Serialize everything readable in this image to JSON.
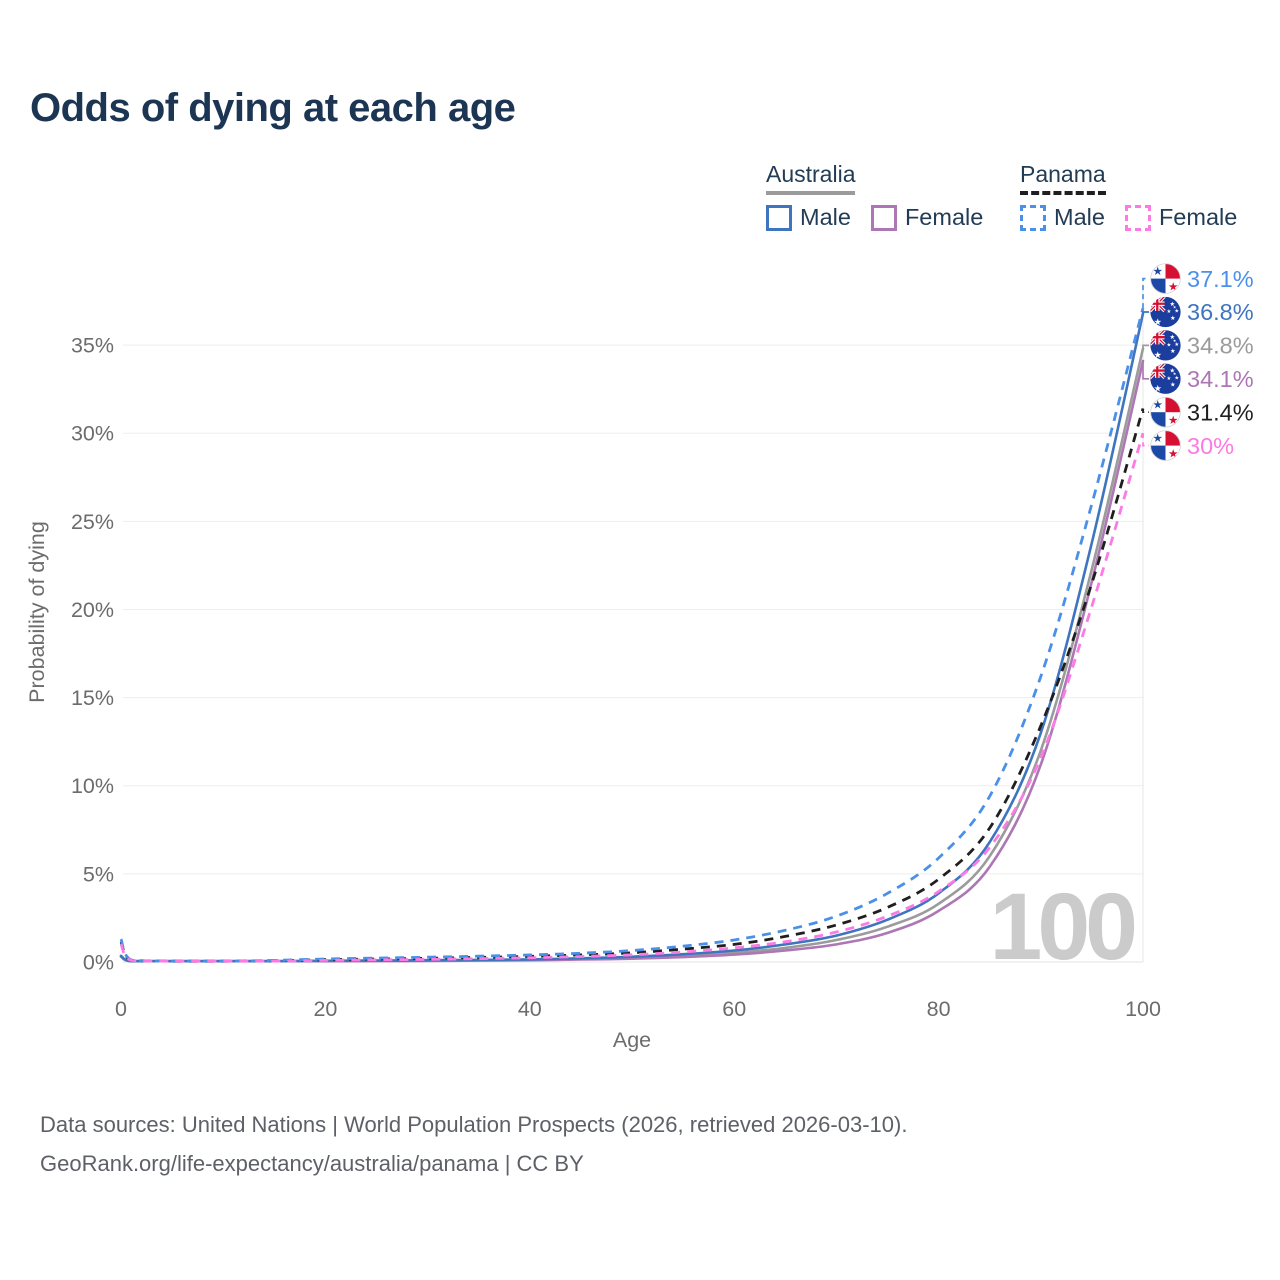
{
  "title": "Odds of dying at each age",
  "legend": {
    "groups": [
      {
        "label": "Australia",
        "style": "solid",
        "items": [
          {
            "label": "Male"
          },
          {
            "label": "Female"
          }
        ]
      },
      {
        "label": "Panama",
        "style": "dashed",
        "items": [
          {
            "label": "Male"
          },
          {
            "label": "Female"
          }
        ]
      }
    ]
  },
  "chart_data": {
    "type": "line",
    "title": "Odds of dying at each age",
    "xlabel": "Age",
    "ylabel": "Probability of dying",
    "xlim": [
      0,
      100
    ],
    "ylim": [
      0,
      38
    ],
    "x_ticks": [
      0,
      20,
      40,
      60,
      80,
      100
    ],
    "y_ticks": [
      0,
      5,
      10,
      15,
      20,
      25,
      30,
      35
    ],
    "y_tick_suffix": "%",
    "grid": "horizontal",
    "legend_position": "top-right",
    "watermark": "100",
    "series": [
      {
        "name": "Australia",
        "country": "australia",
        "sex": "both",
        "flag": "australia",
        "color": "#9b9b9b",
        "dashed": false,
        "end_label": "34.8%",
        "points": [
          [
            0,
            0.32
          ],
          [
            1,
            0.03
          ],
          [
            5,
            0.01
          ],
          [
            10,
            0.01
          ],
          [
            15,
            0.03
          ],
          [
            20,
            0.05
          ],
          [
            25,
            0.06
          ],
          [
            30,
            0.08
          ],
          [
            35,
            0.1
          ],
          [
            40,
            0.12
          ],
          [
            45,
            0.17
          ],
          [
            50,
            0.24
          ],
          [
            55,
            0.36
          ],
          [
            60,
            0.53
          ],
          [
            65,
            0.8
          ],
          [
            70,
            1.25
          ],
          [
            75,
            2.0
          ],
          [
            80,
            3.3
          ],
          [
            85,
            6.0
          ],
          [
            90,
            12.0
          ],
          [
            95,
            22.3
          ],
          [
            100,
            34.8
          ]
        ]
      },
      {
        "name": "Australia Female",
        "country": "australia",
        "sex": "female",
        "flag": "australia",
        "color": "#ad76b4",
        "dashed": false,
        "end_label": "34.1%",
        "points": [
          [
            0,
            0.3
          ],
          [
            1,
            0.02
          ],
          [
            5,
            0.01
          ],
          [
            10,
            0.01
          ],
          [
            15,
            0.02
          ],
          [
            20,
            0.04
          ],
          [
            25,
            0.05
          ],
          [
            30,
            0.06
          ],
          [
            35,
            0.08
          ],
          [
            40,
            0.1
          ],
          [
            45,
            0.14
          ],
          [
            50,
            0.19
          ],
          [
            55,
            0.28
          ],
          [
            60,
            0.42
          ],
          [
            65,
            0.65
          ],
          [
            70,
            1.0
          ],
          [
            75,
            1.65
          ],
          [
            80,
            2.9
          ],
          [
            85,
            5.4
          ],
          [
            90,
            11.2
          ],
          [
            95,
            21.6
          ],
          [
            100,
            34.1
          ]
        ]
      },
      {
        "name": "Australia Male",
        "country": "australia",
        "sex": "male",
        "flag": "australia",
        "color": "#3f74bf",
        "dashed": false,
        "end_label": "36.8%",
        "points": [
          [
            0,
            0.35
          ],
          [
            1,
            0.03
          ],
          [
            5,
            0.01
          ],
          [
            10,
            0.01
          ],
          [
            15,
            0.04
          ],
          [
            20,
            0.07
          ],
          [
            25,
            0.08
          ],
          [
            30,
            0.1
          ],
          [
            35,
            0.12
          ],
          [
            40,
            0.15
          ],
          [
            45,
            0.21
          ],
          [
            50,
            0.3
          ],
          [
            55,
            0.44
          ],
          [
            60,
            0.65
          ],
          [
            65,
            1.0
          ],
          [
            70,
            1.5
          ],
          [
            75,
            2.4
          ],
          [
            80,
            3.9
          ],
          [
            85,
            6.8
          ],
          [
            90,
            13.0
          ],
          [
            95,
            23.8
          ],
          [
            100,
            36.8
          ]
        ]
      },
      {
        "name": "Panama",
        "country": "panama",
        "sex": "both",
        "flag": "panama",
        "color": "#1f1f1f",
        "dashed": true,
        "end_label": "31.4%",
        "points": [
          [
            0,
            1.15
          ],
          [
            1,
            0.1
          ],
          [
            5,
            0.035
          ],
          [
            10,
            0.03
          ],
          [
            15,
            0.07
          ],
          [
            20,
            0.13
          ],
          [
            25,
            0.17
          ],
          [
            30,
            0.21
          ],
          [
            35,
            0.26
          ],
          [
            40,
            0.32
          ],
          [
            45,
            0.4
          ],
          [
            50,
            0.52
          ],
          [
            55,
            0.73
          ],
          [
            60,
            1.0
          ],
          [
            65,
            1.45
          ],
          [
            70,
            2.1
          ],
          [
            75,
            3.1
          ],
          [
            80,
            4.7
          ],
          [
            85,
            7.6
          ],
          [
            90,
            13.4
          ],
          [
            95,
            21.5
          ],
          [
            100,
            31.4
          ]
        ]
      },
      {
        "name": "Panama Male",
        "country": "panama",
        "sex": "male",
        "flag": "panama",
        "color": "#4b90e8",
        "dashed": true,
        "end_label": "37.1%",
        "points": [
          [
            0,
            1.3
          ],
          [
            1,
            0.12
          ],
          [
            5,
            0.04
          ],
          [
            10,
            0.04
          ],
          [
            15,
            0.09
          ],
          [
            20,
            0.17
          ],
          [
            25,
            0.22
          ],
          [
            30,
            0.27
          ],
          [
            35,
            0.33
          ],
          [
            40,
            0.4
          ],
          [
            45,
            0.5
          ],
          [
            50,
            0.65
          ],
          [
            55,
            0.9
          ],
          [
            60,
            1.25
          ],
          [
            65,
            1.8
          ],
          [
            70,
            2.6
          ],
          [
            75,
            3.9
          ],
          [
            80,
            5.9
          ],
          [
            85,
            9.4
          ],
          [
            90,
            16.2
          ],
          [
            95,
            26.0
          ],
          [
            100,
            37.1
          ]
        ]
      },
      {
        "name": "Panama Female",
        "country": "panama",
        "sex": "female",
        "flag": "panama",
        "color": "#fb7ae4",
        "dashed": true,
        "end_label": "30%",
        "points": [
          [
            0,
            1.0
          ],
          [
            1,
            0.09
          ],
          [
            5,
            0.03
          ],
          [
            10,
            0.025
          ],
          [
            15,
            0.05
          ],
          [
            20,
            0.09
          ],
          [
            25,
            0.12
          ],
          [
            30,
            0.15
          ],
          [
            35,
            0.19
          ],
          [
            40,
            0.24
          ],
          [
            45,
            0.31
          ],
          [
            50,
            0.41
          ],
          [
            55,
            0.57
          ],
          [
            60,
            0.8
          ],
          [
            65,
            1.15
          ],
          [
            70,
            1.7
          ],
          [
            75,
            2.6
          ],
          [
            80,
            4.0
          ],
          [
            85,
            6.5
          ],
          [
            90,
            11.6
          ],
          [
            95,
            20.2
          ],
          [
            100,
            30.0
          ]
        ]
      }
    ]
  },
  "footer": {
    "line1": "Data sources: United Nations | World Population Prospects (2026, retrieved 2026-03-10).",
    "line2": "GeoRank.org/life-expectancy/australia/panama | CC BY"
  }
}
